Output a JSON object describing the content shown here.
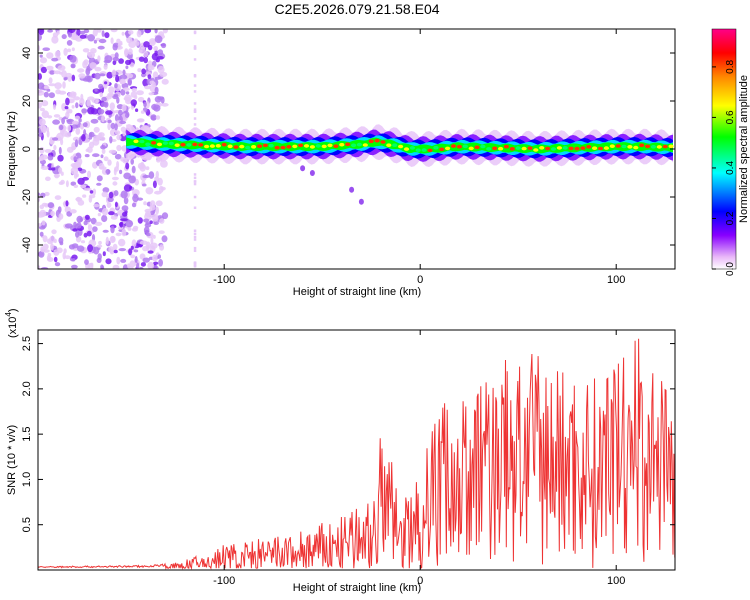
{
  "title": "C2E5.2026.079.21.58.E04",
  "colors": {
    "snr_line": "#ee3333",
    "axis": "#000000",
    "background": "#ffffff"
  },
  "chart_data": [
    {
      "type": "heatmap",
      "name": "spectrogram",
      "xlabel": "Height of straight line (km)",
      "ylabel": "Frequency (Hz)",
      "xlim": [
        -195,
        130
      ],
      "ylim": [
        -50,
        50
      ],
      "xticks": [
        -100,
        0,
        100
      ],
      "yticks": [
        -40,
        -20,
        0,
        20,
        40
      ],
      "colorbar": {
        "label": "Normalized spectral amplitude",
        "range": [
          0,
          0.95
        ],
        "ticks": [
          0.0,
          0.2,
          0.4,
          0.6,
          0.8
        ],
        "colormap": [
          "#ffffff",
          "#e9b8f8",
          "#8800ff",
          "#0000ff",
          "#00ffff",
          "#00ff00",
          "#ffff00",
          "#ff8800",
          "#ff0000",
          "#ff0088"
        ]
      },
      "ridge": [
        {
          "x": -150,
          "y": 3
        },
        {
          "x": -130,
          "y": 2
        },
        {
          "x": -110,
          "y": 1.5
        },
        {
          "x": -90,
          "y": 1
        },
        {
          "x": -70,
          "y": 1
        },
        {
          "x": -50,
          "y": 1
        },
        {
          "x": -30,
          "y": 2
        },
        {
          "x": -22,
          "y": 3
        },
        {
          "x": -15,
          "y": 2
        },
        {
          "x": -5,
          "y": 0
        },
        {
          "x": 5,
          "y": 0
        },
        {
          "x": 20,
          "y": 1
        },
        {
          "x": 40,
          "y": 0.5
        },
        {
          "x": 60,
          "y": 0
        },
        {
          "x": 80,
          "y": 0.5
        },
        {
          "x": 100,
          "y": 1
        },
        {
          "x": 115,
          "y": 1
        },
        {
          "x": 130,
          "y": 0.5
        }
      ]
    },
    {
      "type": "line",
      "name": "snr",
      "xlabel": "Height of straight line (km)",
      "ylabel": "SNR (10 * v/v)",
      "y_multiplier": "(x10",
      "y_multiplier_exp": "4",
      "xlim": [
        -195,
        130
      ],
      "ylim": [
        0,
        2.65
      ],
      "xticks": [
        -100,
        0,
        100
      ],
      "yticks": [
        0.5,
        1.0,
        1.5,
        2.0,
        2.5
      ],
      "envelope": [
        {
          "x": -195,
          "y": 0.04
        },
        {
          "x": -140,
          "y": 0.05
        },
        {
          "x": -125,
          "y": 0.08
        },
        {
          "x": -110,
          "y": 0.18
        },
        {
          "x": -100,
          "y": 0.3
        },
        {
          "x": -80,
          "y": 0.35
        },
        {
          "x": -60,
          "y": 0.45
        },
        {
          "x": -40,
          "y": 0.6
        },
        {
          "x": -25,
          "y": 0.75
        },
        {
          "x": -20,
          "y": 1.6
        },
        {
          "x": -10,
          "y": 0.85
        },
        {
          "x": 0,
          "y": 1.0
        },
        {
          "x": 10,
          "y": 2.0
        },
        {
          "x": 20,
          "y": 1.8
        },
        {
          "x": 35,
          "y": 2.3
        },
        {
          "x": 55,
          "y": 2.4
        },
        {
          "x": 75,
          "y": 2.25
        },
        {
          "x": 95,
          "y": 2.1
        },
        {
          "x": 112,
          "y": 2.6
        },
        {
          "x": 125,
          "y": 2.0
        },
        {
          "x": 130,
          "y": 1.8
        }
      ]
    }
  ]
}
